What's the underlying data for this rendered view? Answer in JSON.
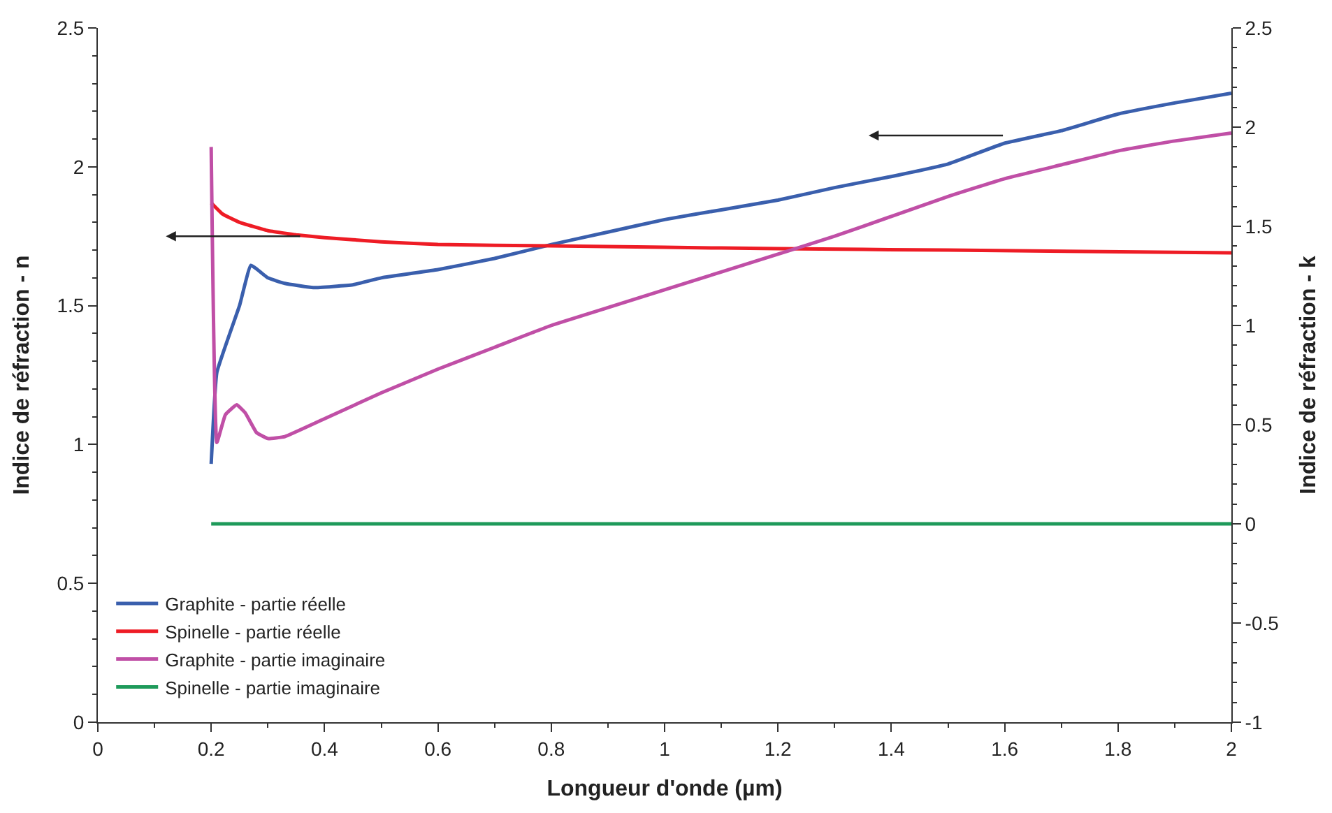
{
  "chart_data": {
    "type": "line",
    "xlabel": "Longueur d'onde (µm)",
    "ylabel": "Indice de réfraction - n",
    "y2label": "Indice de réfraction - k",
    "xlim": [
      0,
      2
    ],
    "xticks": [
      0,
      0.2,
      0.4,
      0.6,
      0.8,
      1,
      1.2,
      1.4,
      1.6,
      1.8,
      2
    ],
    "ylim": [
      0,
      2.5
    ],
    "yticks": [
      0,
      0.5,
      1,
      1.5,
      2,
      2.5
    ],
    "y2lim": [
      -1,
      2.5
    ],
    "y2ticks": [
      -1,
      -0.5,
      0,
      0.5,
      1,
      1.5,
      2,
      2.5
    ],
    "legend": "bottom left",
    "marker": "none",
    "line_style": "solid",
    "series": [
      {
        "name": "Graphite - partie réelle",
        "color": "#3a5fad",
        "x": [
          0.2,
          0.21,
          0.25,
          0.27,
          0.3,
          0.33,
          0.38,
          0.45,
          0.5,
          0.6,
          0.7,
          0.8,
          0.9,
          1.0,
          1.1,
          1.2,
          1.3,
          1.4,
          1.5,
          1.6,
          1.7,
          1.8,
          1.9,
          2.0
        ],
        "values": [
          0.93,
          1.26,
          1.5,
          1.645,
          1.6,
          1.58,
          1.565,
          1.575,
          1.6,
          1.63,
          1.67,
          1.72,
          1.765,
          1.81,
          1.845,
          1.88,
          1.925,
          1.965,
          2.01,
          2.085,
          2.13,
          2.19,
          2.23,
          2.265
        ]
      },
      {
        "name": "Spinelle - partie réelle",
        "color": "#ee1c25",
        "x": [
          0.2,
          0.22,
          0.25,
          0.3,
          0.35,
          0.4,
          0.5,
          0.6,
          0.8,
          1.0,
          1.2,
          1.5,
          2.0
        ],
        "values": [
          1.87,
          1.83,
          1.8,
          1.77,
          1.755,
          1.745,
          1.73,
          1.72,
          1.715,
          1.71,
          1.705,
          1.7,
          1.69
        ]
      },
      {
        "name": "Graphite - partie imaginaire",
        "color": "#c04fa6",
        "axis": "y2",
        "x": [
          0.2,
          0.21,
          0.225,
          0.245,
          0.26,
          0.28,
          0.3,
          0.33,
          0.4,
          0.5,
          0.6,
          0.7,
          0.8,
          0.9,
          1.0,
          1.1,
          1.2,
          1.3,
          1.4,
          1.5,
          1.6,
          1.7,
          1.8,
          1.9,
          2.0
        ],
        "values": [
          1.9,
          0.41,
          0.55,
          0.6,
          0.56,
          0.46,
          0.43,
          0.44,
          0.53,
          0.66,
          0.78,
          0.89,
          1.0,
          1.09,
          1.18,
          1.27,
          1.36,
          1.45,
          1.55,
          1.65,
          1.74,
          1.81,
          1.88,
          1.93,
          1.97
        ]
      },
      {
        "name": "Spinelle - partie imaginaire",
        "color": "#1e9a5a",
        "axis": "y2",
        "x": [
          0.2,
          2.0
        ],
        "values": [
          0,
          0
        ]
      }
    ]
  }
}
